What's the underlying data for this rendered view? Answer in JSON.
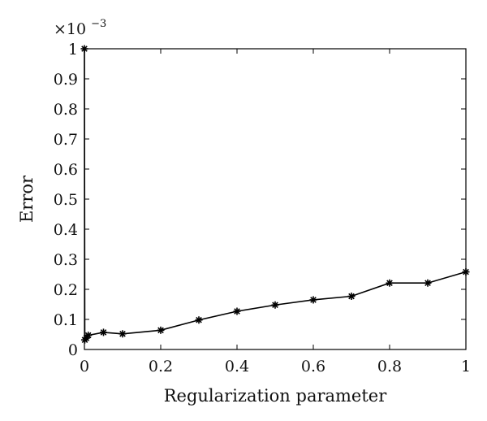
{
  "chart_data": {
    "type": "line",
    "title": "",
    "xlabel": "Regularization parameter",
    "ylabel": "Error",
    "y_multiplier_label": "×10",
    "y_multiplier_exponent": "−3",
    "xlim": [
      0,
      1
    ],
    "ylim": [
      0,
      1
    ],
    "xticks": [
      "0",
      "0.2",
      "0.4",
      "0.6",
      "0.8",
      "1"
    ],
    "yticks": [
      "0",
      "0.1",
      "0.2",
      "0.3",
      "0.4",
      "0.5",
      "0.6",
      "0.7",
      "0.8",
      "0.9",
      "1"
    ],
    "grid": false,
    "series": [
      {
        "marker": "asterisk",
        "color": "#000000",
        "x": [
          0,
          0.001,
          0.005,
          0.01,
          0.05,
          0.1,
          0.2,
          0.3,
          0.4,
          0.5,
          0.6,
          0.7,
          0.8,
          0.9,
          1.0
        ],
        "y": [
          1.0,
          0.032,
          0.038,
          0.047,
          0.057,
          0.052,
          0.064,
          0.098,
          0.127,
          0.148,
          0.165,
          0.177,
          0.221,
          0.221,
          0.258
        ]
      }
    ]
  }
}
